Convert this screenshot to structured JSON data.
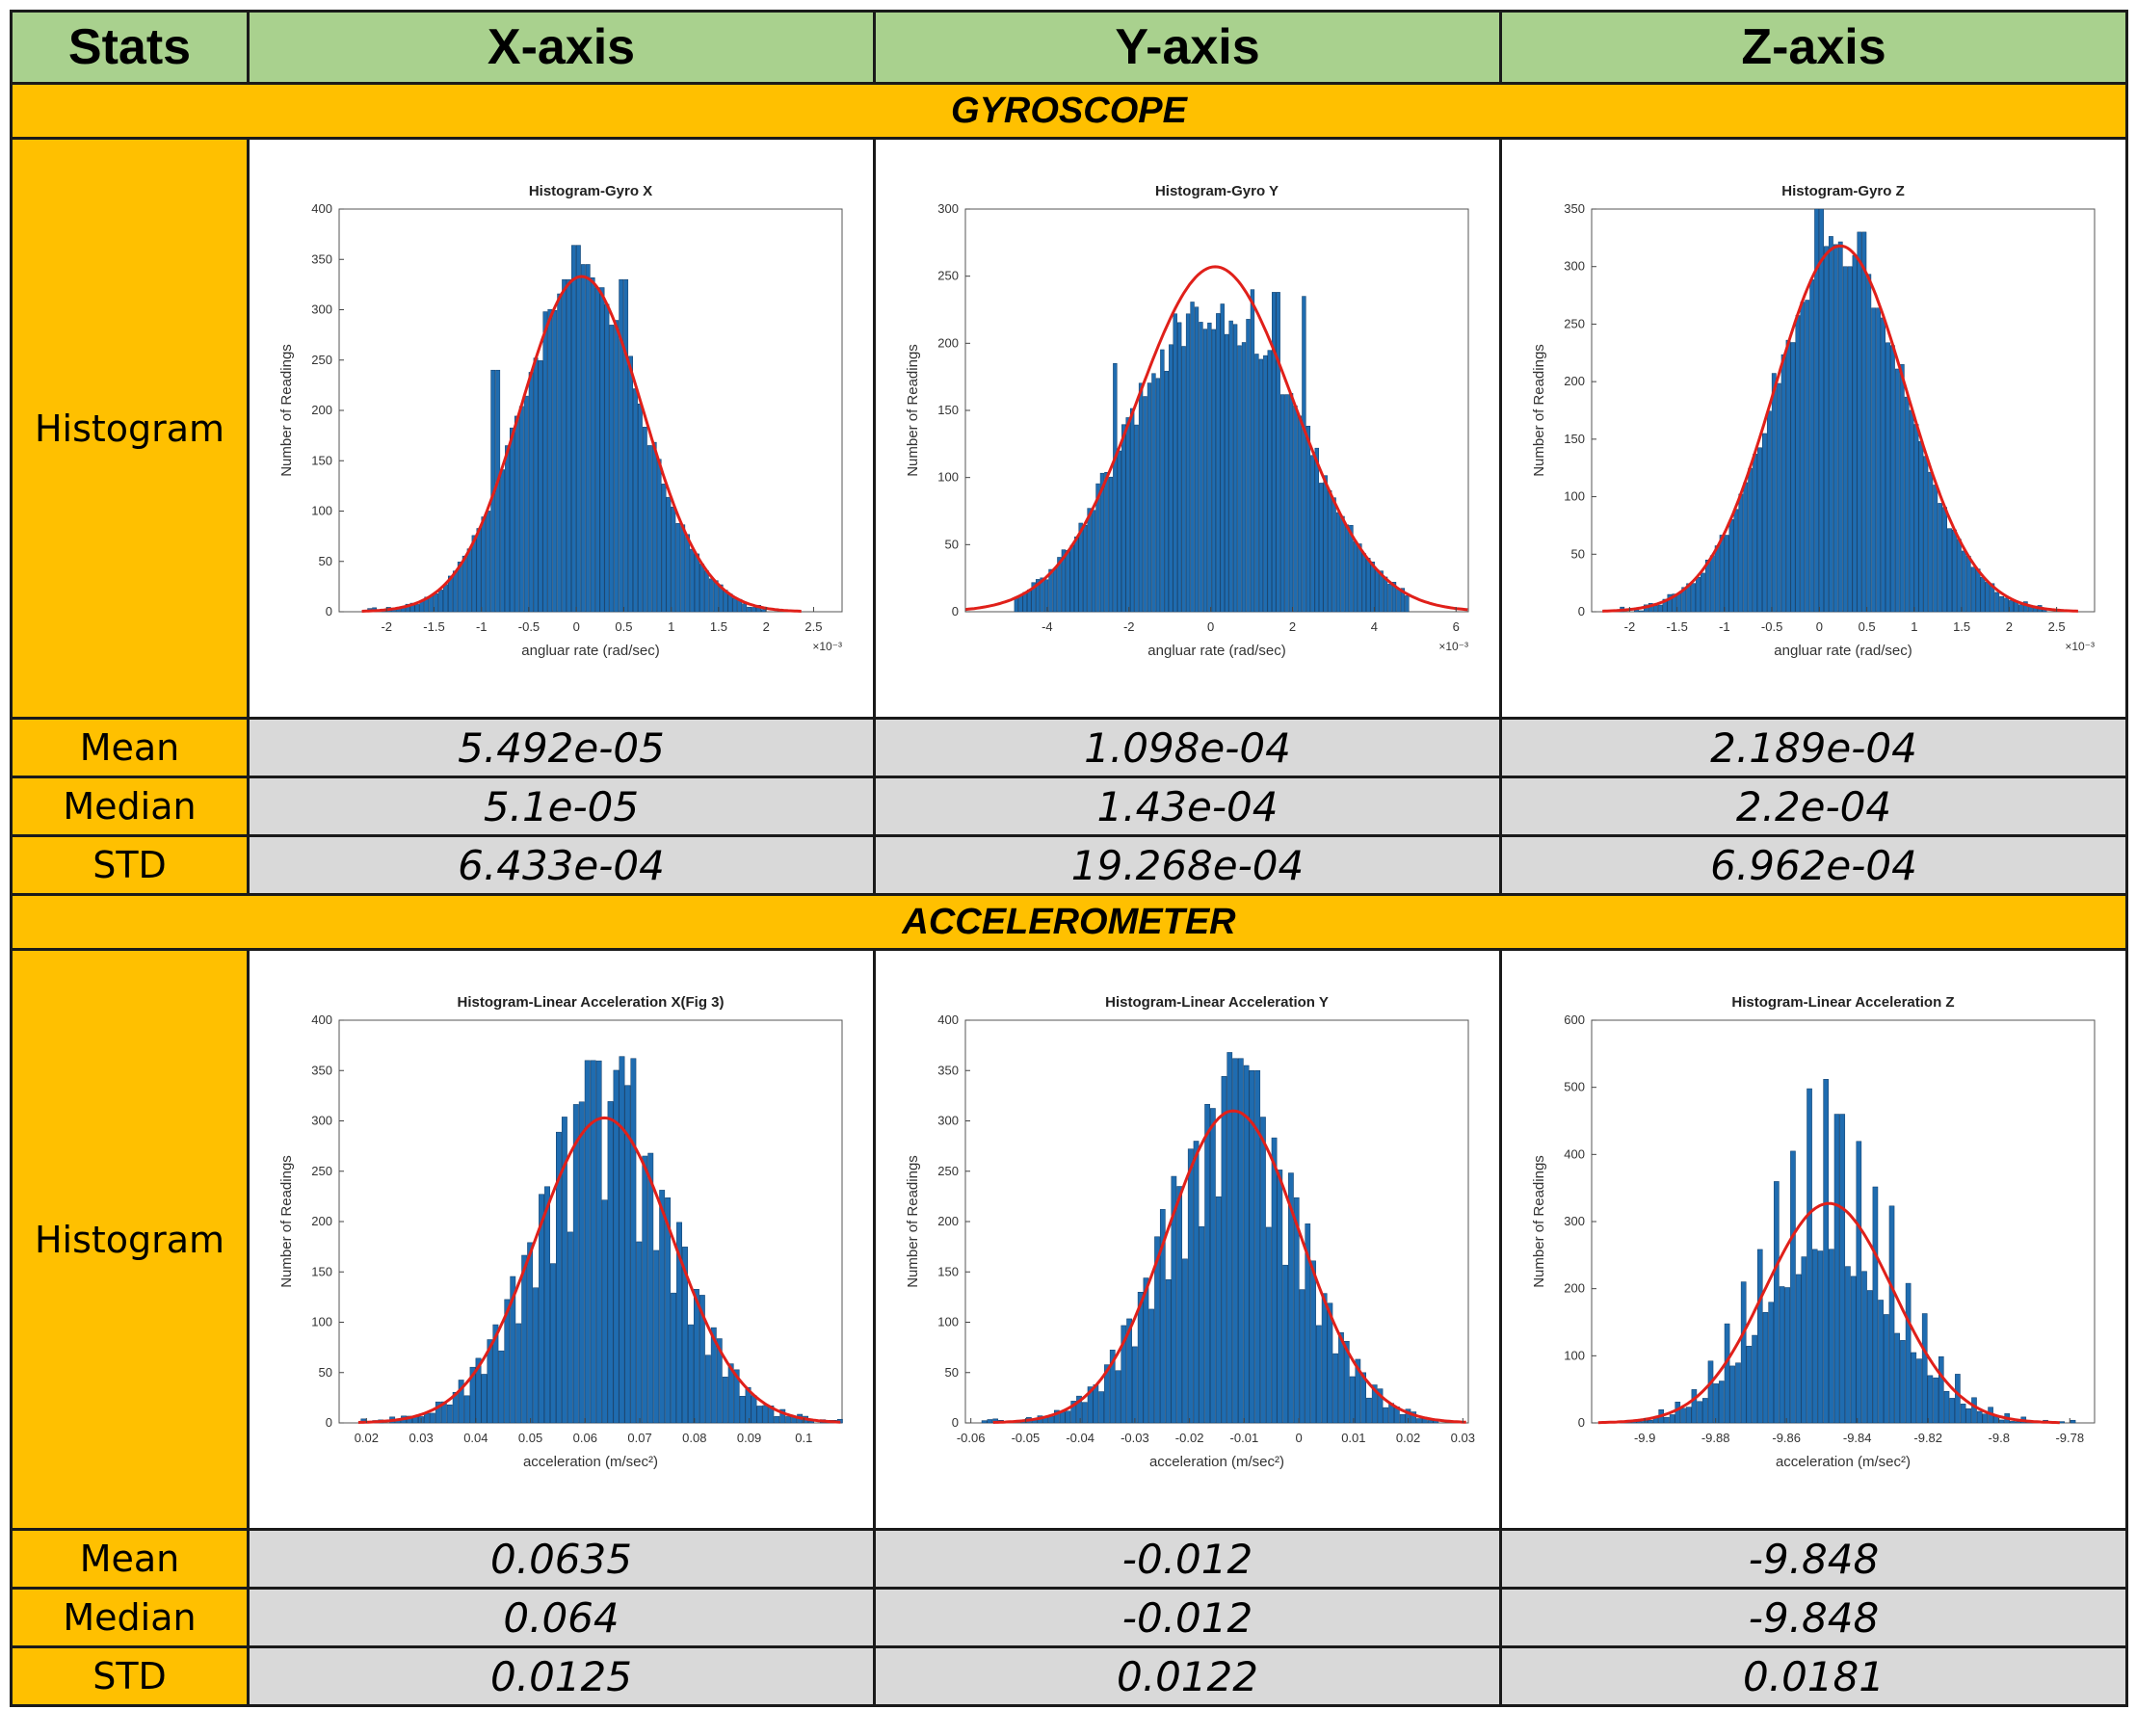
{
  "table": {
    "headers": [
      "Stats",
      "X-axis",
      "Y-axis",
      "Z-axis"
    ],
    "row_labels": {
      "histogram": "Histogram",
      "mean": "Mean",
      "median": "Median",
      "std": "STD"
    },
    "sections": [
      {
        "title": "GYROSCOPE",
        "mean": [
          "5.492e-05",
          "1.098e-04",
          "2.189e-04"
        ],
        "median": [
          "5.1e-05",
          "1.43e-04",
          "2.2e-04"
        ],
        "std": [
          "6.433e-04",
          "19.268e-04",
          "6.962e-04"
        ]
      },
      {
        "title": "ACCELEROMETER",
        "mean": [
          "0.0635",
          "-0.012",
          "-9.848"
        ],
        "median": [
          "0.064",
          "-0.012",
          "-9.848"
        ],
        "std": [
          "0.0125",
          "0.0122",
          "0.0181"
        ]
      }
    ]
  },
  "colors": {
    "header_bg": "#a9d18e",
    "section_bg": "#ffc000",
    "value_bg": "#d9d9d9",
    "bar": "#1f6cb0",
    "bar_edge": "#0d3a66",
    "fit": "#e0201a"
  },
  "chart_data": [
    {
      "type": "bar",
      "title": "Histogram-Gyro X",
      "xlabel": "angluar rate (rad/sec)",
      "ylabel": "Number of Readings",
      "xexp": "×10⁻³",
      "xlim": [
        -2.5,
        2.8
      ],
      "ylim": [
        0,
        400
      ],
      "xticks": [
        -2,
        -1.5,
        -1,
        -0.5,
        0,
        0.5,
        1,
        1.5,
        2,
        2.5
      ],
      "xtick_labels": [
        "-2",
        "-1.5",
        "-1",
        "-0.5",
        "0",
        "0.5",
        "1",
        "1.5",
        "2",
        "2.5"
      ],
      "yticks": [
        0,
        50,
        100,
        150,
        200,
        250,
        300,
        350,
        400
      ],
      "bins": {
        "start": -2.2,
        "width": 0.05,
        "count": 84
      },
      "fit": {
        "mu": 0.055,
        "sigma": 0.6433,
        "peak": 333
      },
      "bumps": [
        [
          0.0,
          364
        ],
        [
          0.1,
          345
        ],
        [
          -0.1,
          330
        ],
        [
          0.5,
          330
        ],
        [
          -0.85,
          240
        ],
        [
          0.25,
          322
        ]
      ]
    },
    {
      "type": "bar",
      "title": "Histogram-Gyro Y",
      "xlabel": "angluar rate (rad/sec)",
      "ylabel": "Number of Readings",
      "xexp": "×10⁻³",
      "xlim": [
        -6,
        6.3
      ],
      "ylim": [
        0,
        300
      ],
      "xticks": [
        -4,
        -2,
        0,
        2,
        4,
        6
      ],
      "xtick_labels": [
        "-4",
        "-2",
        "0",
        "2",
        "4",
        "6"
      ],
      "yticks": [
        0,
        50,
        100,
        150,
        200,
        250,
        300
      ],
      "bins": {
        "start": -4.8,
        "width": 0.105,
        "count": 92
      },
      "fit": {
        "mu": 0.11,
        "sigma": 1.9268,
        "peak": 257
      },
      "shape": "flat",
      "bumps": [
        [
          1.0,
          240
        ],
        [
          1.6,
          238
        ],
        [
          -0.9,
          222
        ],
        [
          2.3,
          235
        ],
        [
          -2.3,
          185
        ]
      ]
    },
    {
      "type": "bar",
      "title": "Histogram-Gyro Z",
      "xlabel": "angluar rate (rad/sec)",
      "ylabel": "Number of Readings",
      "xexp": "×10⁻³",
      "xlim": [
        -2.4,
        2.9
      ],
      "ylim": [
        0,
        350
      ],
      "xticks": [
        -2,
        -1.5,
        -1,
        -0.5,
        0,
        0.5,
        1,
        1.5,
        2,
        2.5
      ],
      "xtick_labels": [
        "-2",
        "-1.5",
        "-1",
        "-0.5",
        "0",
        "0.5",
        "1",
        "1.5",
        "2",
        "2.5"
      ],
      "yticks": [
        0,
        50,
        100,
        150,
        200,
        250,
        300,
        350
      ],
      "bins": {
        "start": -2.1,
        "width": 0.05,
        "count": 90
      },
      "fit": {
        "mu": 0.22,
        "sigma": 0.6962,
        "peak": 318
      },
      "bumps": [
        [
          0.0,
          350
        ],
        [
          0.45,
          330
        ],
        [
          0.6,
          264
        ],
        [
          0.3,
          300
        ]
      ]
    },
    {
      "type": "bar",
      "title": "Histogram-Linear Acceleration X(Fig 3)",
      "xlabel": "acceleration (m/sec²)",
      "ylabel": "Number of Readings",
      "xexp": "",
      "xlim": [
        0.015,
        0.107
      ],
      "ylim": [
        0,
        400
      ],
      "xticks": [
        0.02,
        0.03,
        0.04,
        0.05,
        0.06,
        0.07,
        0.08,
        0.09,
        0.1
      ],
      "xtick_labels": [
        "0.02",
        "0.03",
        "0.04",
        "0.05",
        "0.06",
        "0.07",
        "0.08",
        "0.09",
        "0.1"
      ],
      "yticks": [
        0,
        50,
        100,
        150,
        200,
        250,
        300,
        350,
        400
      ],
      "bins": {
        "start": 0.019,
        "width": 0.00105,
        "count": 84
      },
      "fit": {
        "mu": 0.0635,
        "sigma": 0.0125,
        "peak": 303
      },
      "shape": "comb",
      "bumps": [
        [
          0.067,
          364
        ],
        [
          0.061,
          360
        ],
        [
          0.069,
          362
        ]
      ]
    },
    {
      "type": "bar",
      "title": "Histogram-Linear Acceleration Y",
      "xlabel": "acceleration (m/sec²)",
      "ylabel": "Number of Readings",
      "xexp": "",
      "xlim": [
        -0.061,
        0.031
      ],
      "ylim": [
        0,
        400
      ],
      "xticks": [
        -0.06,
        -0.05,
        -0.04,
        -0.03,
        -0.02,
        -0.01,
        0,
        0.01,
        0.02,
        0.03
      ],
      "xtick_labels": [
        "-0.06",
        "-0.05",
        "-0.04",
        "-0.03",
        "-0.02",
        "-0.01",
        "0",
        "0.01",
        "0.02",
        "0.03"
      ],
      "yticks": [
        0,
        50,
        100,
        150,
        200,
        250,
        300,
        350,
        400
      ],
      "bins": {
        "start": -0.058,
        "width": 0.00102,
        "count": 82
      },
      "fit": {
        "mu": -0.012,
        "sigma": 0.0122,
        "peak": 310
      },
      "shape": "comb",
      "bumps": [
        [
          -0.013,
          368
        ],
        [
          -0.011,
          362
        ],
        [
          -0.008,
          350
        ]
      ]
    },
    {
      "type": "bar",
      "title": "Histogram-Linear Acceleration Z",
      "xlabel": "acceleration (m/sec²)",
      "ylabel": "Number of Readings",
      "xexp": "",
      "xlim": [
        -9.915,
        -9.773
      ],
      "ylim": [
        0,
        600
      ],
      "xticks": [
        -9.9,
        -9.88,
        -9.86,
        -9.84,
        -9.82,
        -9.8,
        -9.78
      ],
      "xtick_labels": [
        "-9.9",
        "-9.88",
        "-9.86",
        "-9.84",
        "-9.82",
        "-9.8",
        "-9.78"
      ],
      "yticks": [
        0,
        100,
        200,
        300,
        400,
        500,
        600
      ],
      "bins": {
        "start": -9.91,
        "width": 0.00155,
        "count": 85
      },
      "fit": {
        "mu": -9.848,
        "sigma": 0.0181,
        "peak": 327
      },
      "shape": "spiky",
      "bumps": [
        [
          -9.849,
          512
        ],
        [
          -9.853,
          498
        ],
        [
          -9.845,
          460
        ]
      ]
    }
  ]
}
